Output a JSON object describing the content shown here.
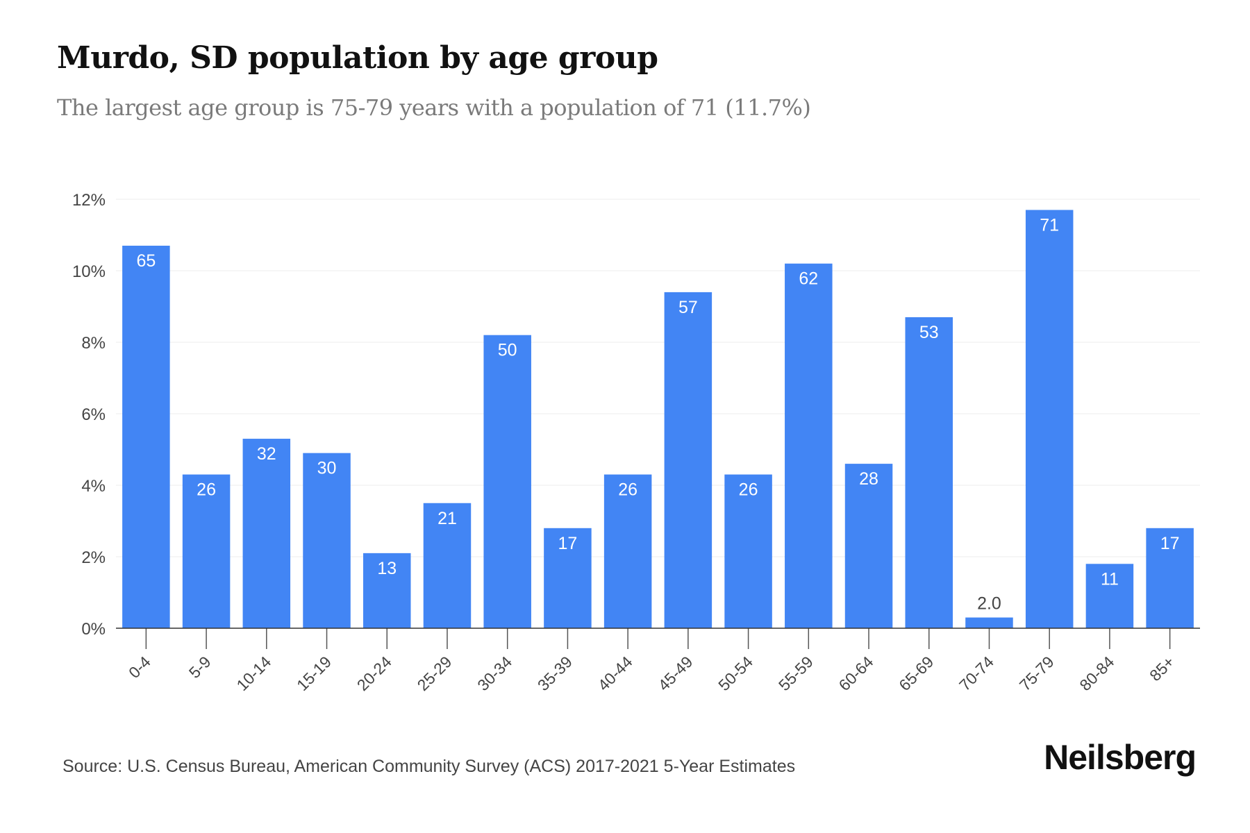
{
  "chart_data": {
    "type": "bar",
    "title": "Murdo, SD population by age group",
    "subtitle": "The largest age group is 75-79 years with a population of 71 (11.7%)",
    "categories": [
      "0-4",
      "5-9",
      "10-14",
      "15-19",
      "20-24",
      "25-29",
      "30-34",
      "35-39",
      "40-44",
      "45-49",
      "50-54",
      "55-59",
      "60-64",
      "65-69",
      "70-74",
      "75-79",
      "80-84",
      "85+"
    ],
    "values": [
      10.7,
      4.3,
      5.3,
      4.9,
      2.1,
      3.5,
      8.2,
      2.8,
      4.3,
      9.4,
      4.3,
      10.2,
      4.6,
      8.7,
      0.3,
      11.7,
      1.8,
      2.8
    ],
    "data_labels": [
      "65",
      "26",
      "32",
      "30",
      "13",
      "21",
      "50",
      "17",
      "26",
      "57",
      "26",
      "62",
      "28",
      "53",
      "2.0",
      "71",
      "11",
      "17"
    ],
    "ylim": [
      0,
      12
    ],
    "yticks": [
      0,
      2,
      4,
      6,
      8,
      10,
      12
    ],
    "ytick_labels": [
      "0%",
      "2%",
      "4%",
      "6%",
      "8%",
      "10%",
      "12%"
    ],
    "xlabel": "",
    "ylabel": "",
    "grid": true,
    "bar_color": "#4285f4"
  },
  "source": "Source: U.S. Census Bureau, American Community Survey (ACS) 2017-2021 5-Year Estimates",
  "brand": "Neilsberg"
}
